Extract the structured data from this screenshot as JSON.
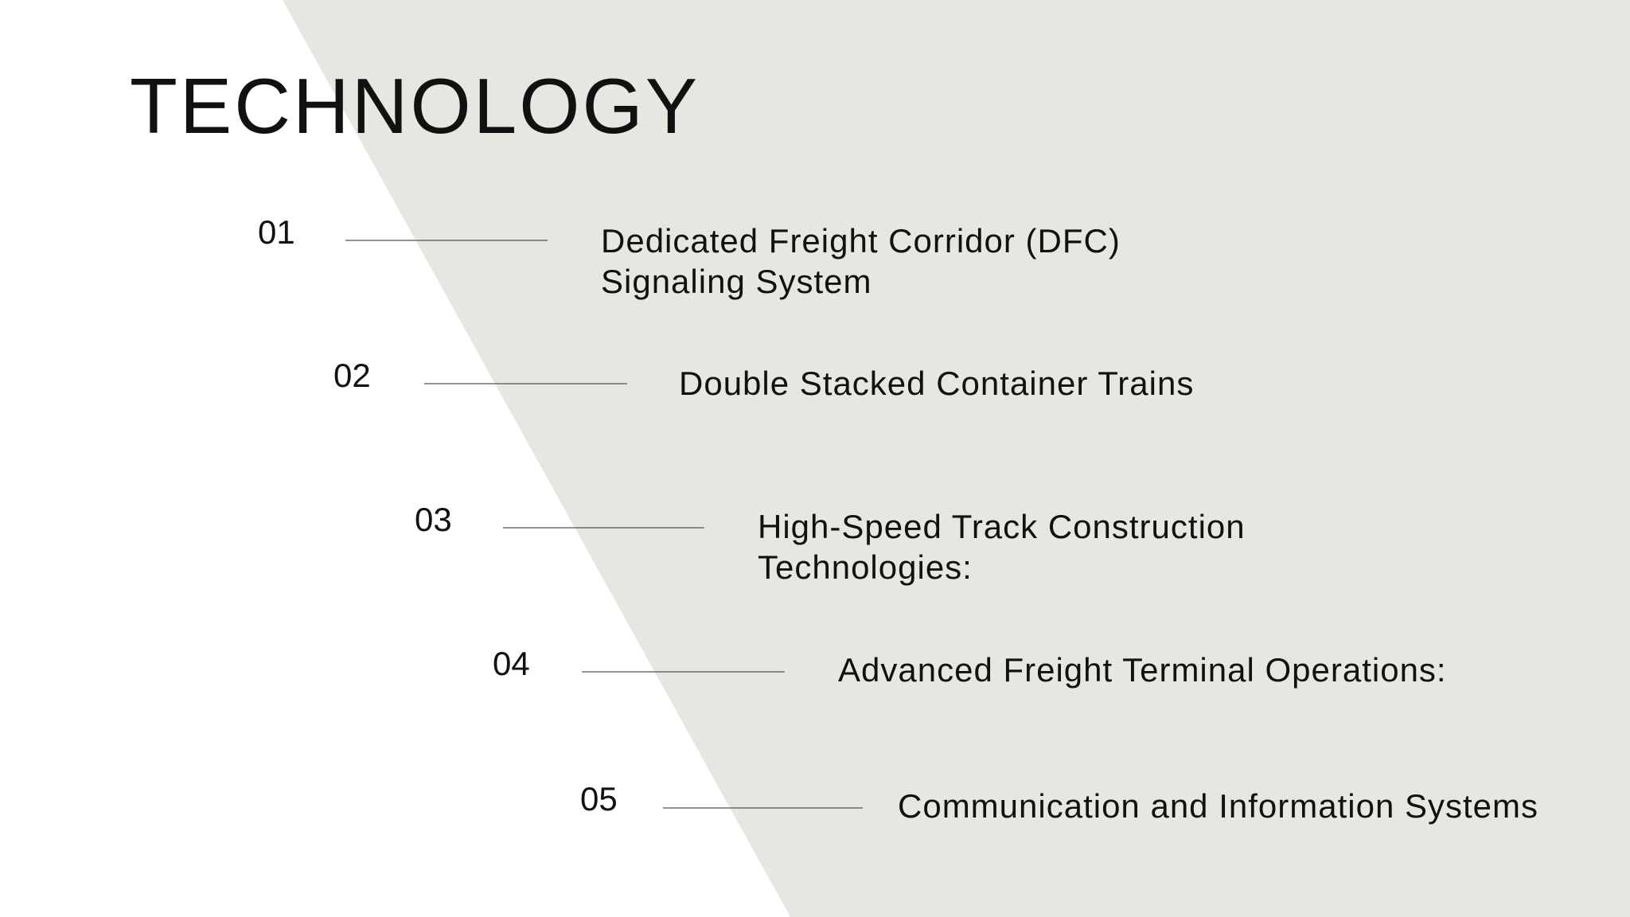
{
  "title": "TECHNOLOGY",
  "items": [
    {
      "number": "01",
      "lines": [
        "Dedicated Freight Corridor (DFC)",
        "Signaling System"
      ]
    },
    {
      "number": "02",
      "lines": [
        "Double Stacked Container Trains"
      ]
    },
    {
      "number": "03",
      "lines": [
        "High-Speed Track Construction",
        "Technologies:"
      ]
    },
    {
      "number": "04",
      "lines": [
        "Advanced Freight Terminal Operations:"
      ]
    },
    {
      "number": "05",
      "lines": [
        "Communication and Information Systems"
      ]
    }
  ]
}
